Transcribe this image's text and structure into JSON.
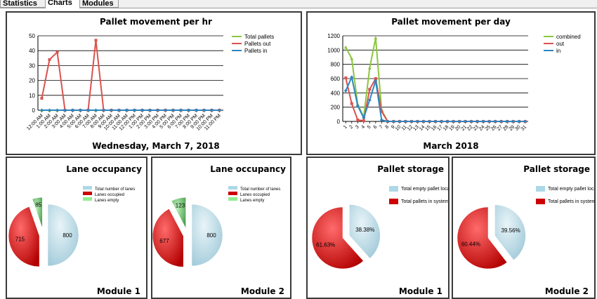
{
  "tabs": [
    {
      "label": "Statistics",
      "active": false
    },
    {
      "label": "Charts",
      "active": true
    },
    {
      "label": "Modules",
      "active": false
    }
  ],
  "colors": {
    "total": "#8cc63f",
    "out": "#d9534f",
    "in": "#2e86c1",
    "lanes_total": "#add8e6",
    "lanes_occupied": "#cc0000",
    "lanes_empty": "#90ee90"
  },
  "chart_data": [
    {
      "type": "line",
      "title": "Pallet movement per hr",
      "subtitle": "Wednesday, March 7, 2018",
      "ylim": [
        0,
        50
      ],
      "yticks": [
        0,
        10,
        20,
        30,
        40,
        50
      ],
      "grid": true,
      "legend_position": "top-right",
      "categories": [
        "12:00 AM",
        "1:00 AM",
        "2:00 AM",
        "3:00 AM",
        "4:00 AM",
        "5:00 AM",
        "6:00 AM",
        "7:00 AM",
        "8:00 AM",
        "9:00 AM",
        "10:00 AM",
        "11:00 AM",
        "12:00 PM",
        "1:00 PM",
        "2:00 PM",
        "3:00 PM",
        "4:00 PM",
        "5:00 PM",
        "6:00 PM",
        "7:00 PM",
        "8:00 PM",
        "9:00 PM",
        "10:00 PM",
        "11:00 PM"
      ],
      "series": [
        {
          "name": "Total pallets",
          "color": "#8cc63f",
          "values": [
            0,
            0,
            0,
            0,
            0,
            0,
            0,
            0,
            0,
            0,
            0,
            0,
            0,
            0,
            0,
            0,
            0,
            0,
            0,
            0,
            0,
            0,
            0,
            0
          ]
        },
        {
          "name": "Pallets out",
          "color": "#d9534f",
          "values": [
            8,
            34,
            39,
            0,
            0,
            0,
            0,
            47,
            0,
            0,
            0,
            0,
            0,
            0,
            0,
            0,
            0,
            0,
            0,
            0,
            0,
            0,
            0,
            0
          ]
        },
        {
          "name": "Pallets in",
          "color": "#2e86c1",
          "values": [
            0,
            0,
            0,
            0,
            0,
            0,
            0,
            0,
            0,
            0,
            0,
            0,
            0,
            0,
            0,
            0,
            0,
            0,
            0,
            0,
            0,
            0,
            0,
            0
          ]
        }
      ]
    },
    {
      "type": "line",
      "title": "Pallet movement per day",
      "subtitle": "March 2018",
      "ylim": [
        0,
        1200
      ],
      "yticks": [
        0,
        200,
        400,
        600,
        800,
        1000,
        1200
      ],
      "grid": true,
      "legend_position": "top-right",
      "categories": [
        "1",
        "2",
        "3",
        "4",
        "5",
        "6",
        "7",
        "8",
        "9",
        "10",
        "11",
        "12",
        "13",
        "14",
        "15",
        "16",
        "17",
        "18",
        "19",
        "20",
        "21",
        "22",
        "23",
        "24",
        "25",
        "26",
        "27",
        "28",
        "29",
        "30",
        "31"
      ],
      "series": [
        {
          "name": "combined",
          "color": "#8cc63f",
          "values": [
            1040,
            880,
            240,
            60,
            750,
            1170,
            160,
            0,
            0,
            0,
            0,
            0,
            0,
            0,
            0,
            0,
            0,
            0,
            0,
            0,
            0,
            0,
            0,
            0,
            0,
            0,
            0,
            0,
            0,
            0,
            0
          ]
        },
        {
          "name": "out",
          "color": "#d9534f",
          "values": [
            610,
            250,
            20,
            10,
            450,
            600,
            140,
            0,
            0,
            0,
            0,
            0,
            0,
            0,
            0,
            0,
            0,
            0,
            0,
            0,
            0,
            0,
            0,
            0,
            0,
            0,
            0,
            0,
            0,
            0,
            0
          ]
        },
        {
          "name": "in",
          "color": "#2e86c1",
          "values": [
            430,
            620,
            220,
            50,
            300,
            570,
            20,
            0,
            0,
            0,
            0,
            0,
            0,
            0,
            0,
            0,
            0,
            0,
            0,
            0,
            0,
            0,
            0,
            0,
            0,
            0,
            0,
            0,
            0,
            0,
            0
          ]
        }
      ]
    },
    {
      "type": "pie",
      "title": "Lane occupancy",
      "subtitle": "Module 1",
      "legend": [
        "Total number of lanes",
        "Lanes occupied",
        "Lanes empty"
      ],
      "slices": [
        {
          "name": "Total number of lanes",
          "value": 800,
          "label": "800",
          "color": "#add8e6"
        },
        {
          "name": "Lanes occupied",
          "value": 715,
          "label": "715",
          "color": "#cc0000"
        },
        {
          "name": "Lanes empty",
          "value": 85,
          "label": "85",
          "color": "#90ee90"
        }
      ]
    },
    {
      "type": "pie",
      "title": "Lane occupancy",
      "subtitle": "Module 2",
      "legend": [
        "Total number of lanes",
        "Lanes occupied",
        "Lanes empty"
      ],
      "slices": [
        {
          "name": "Total number of lanes",
          "value": 800,
          "label": "800",
          "color": "#add8e6"
        },
        {
          "name": "Lanes occupied",
          "value": 677,
          "label": "677",
          "color": "#cc0000"
        },
        {
          "name": "Lanes empty",
          "value": 123,
          "label": "123",
          "color": "#90ee90"
        }
      ]
    },
    {
      "type": "pie",
      "title": "Pallet storage",
      "subtitle": "Module 1",
      "legend": [
        "Total empty pallet locations",
        "Total pallets in system"
      ],
      "slices": [
        {
          "name": "Total empty pallet locations",
          "value": 38.38,
          "label": "38.38%",
          "color": "#add8e6"
        },
        {
          "name": "Total pallets in system",
          "value": 61.63,
          "label": "61.63%",
          "color": "#cc0000"
        }
      ]
    },
    {
      "type": "pie",
      "title": "Pallet storage",
      "subtitle": "Module 2",
      "legend": [
        "Total empty pallet locations",
        "Total pallets in system"
      ],
      "slices": [
        {
          "name": "Total empty pallet locations",
          "value": 39.56,
          "label": "39.56%",
          "color": "#add8e6"
        },
        {
          "name": "Total pallets in system",
          "value": 60.44,
          "label": "60.44%",
          "color": "#cc0000"
        }
      ]
    }
  ]
}
